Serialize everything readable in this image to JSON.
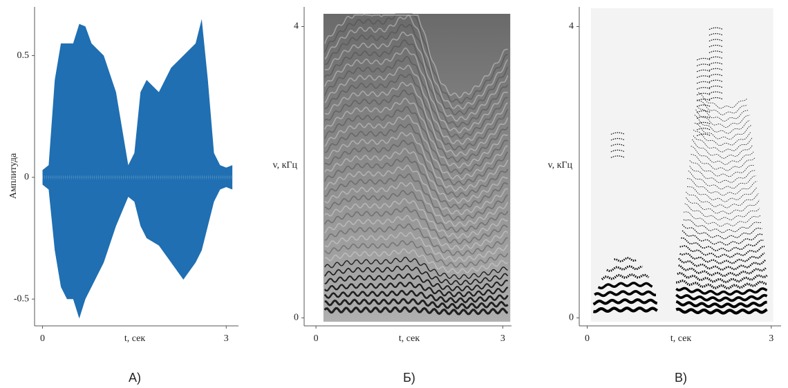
{
  "chart_data": [
    {
      "type": "waveform",
      "panel_label": "А)",
      "xlabel": "t, сек",
      "ylabel": "Амплитуда",
      "color": "#1f6fb2",
      "x": [
        0,
        0.1,
        0.2,
        0.3,
        0.4,
        0.5,
        0.6,
        0.7,
        0.8,
        1.0,
        1.2,
        1.4,
        1.5,
        1.6,
        1.7,
        1.9,
        2.1,
        2.3,
        2.5,
        2.6,
        2.7,
        2.8,
        2.9,
        3.0,
        3.1
      ],
      "high": [
        0.03,
        0.05,
        0.4,
        0.55,
        0.55,
        0.55,
        0.63,
        0.62,
        0.55,
        0.5,
        0.35,
        0.05,
        0.1,
        0.35,
        0.4,
        0.35,
        0.45,
        0.5,
        0.55,
        0.65,
        0.4,
        0.1,
        0.05,
        0.04,
        0.05
      ],
      "low": [
        -0.03,
        -0.05,
        -0.3,
        -0.45,
        -0.5,
        -0.5,
        -0.58,
        -0.5,
        -0.45,
        -0.35,
        -0.2,
        -0.08,
        -0.1,
        -0.2,
        -0.25,
        -0.28,
        -0.35,
        -0.42,
        -0.35,
        -0.3,
        -0.2,
        -0.1,
        -0.05,
        -0.04,
        -0.05
      ],
      "xlim": [
        -0.13,
        3.2
      ],
      "ylim": [
        -0.61,
        0.7
      ],
      "xticks": [
        0,
        3
      ],
      "yticks": [
        -0.5,
        0,
        0.5
      ]
    },
    {
      "type": "spectrogram",
      "panel_label": "Б)",
      "xlabel": "t, сек",
      "ylabel": "v, кГц",
      "xlim": [
        -0.19,
        3.14
      ],
      "ylim": [
        -0.11,
        4.27
      ],
      "xticks": [
        0,
        3
      ],
      "yticks": [
        0,
        4
      ]
    },
    {
      "type": "spectrogram-binary",
      "panel_label": "В)",
      "xlabel": "t, сек",
      "ylabel": "v, кГц",
      "xlim": [
        -0.13,
        3.16
      ],
      "ylim": [
        -0.11,
        4.27
      ],
      "xticks": [
        0,
        3
      ],
      "yticks": [
        0,
        4
      ]
    }
  ]
}
